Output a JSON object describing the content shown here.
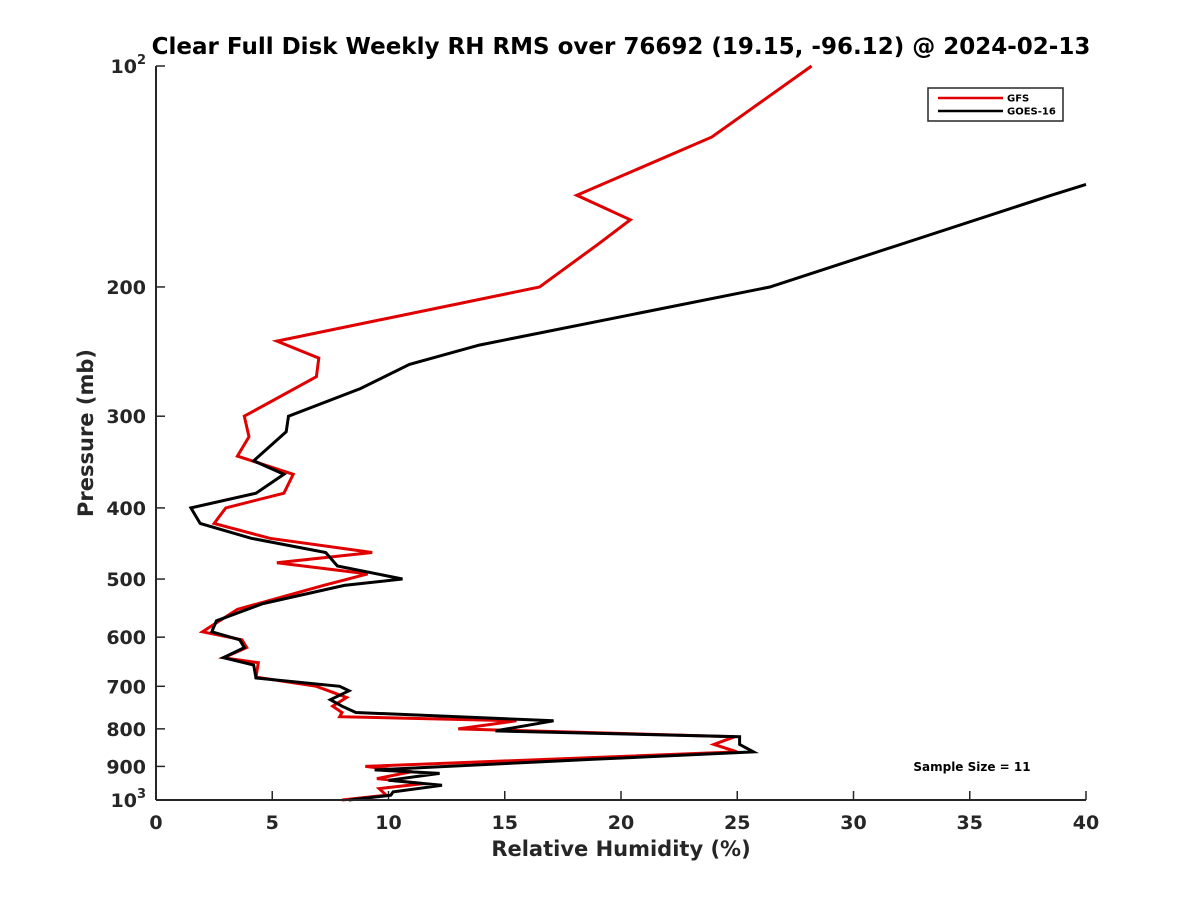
{
  "chart_data": {
    "type": "line",
    "title": "Clear Full Disk Weekly RH RMS over 76692 (19.15, -96.12) @ 2024-02-13",
    "xlabel": "Relative Humidity (%)",
    "ylabel": "Pressure (mb)",
    "xlim": [
      0,
      40
    ],
    "ylim": [
      100,
      1000
    ],
    "yscale": "log",
    "y_reversed": true,
    "x_ticks": [
      "0",
      "5",
      "10",
      "15",
      "20",
      "25",
      "30",
      "35",
      "40"
    ],
    "y_ticks": [
      {
        "value": 100,
        "base": "10",
        "exp": "2"
      },
      {
        "value": 200,
        "label": "200"
      },
      {
        "value": 300,
        "label": "300"
      },
      {
        "value": 400,
        "label": "400"
      },
      {
        "value": 500,
        "label": "500"
      },
      {
        "value": 600,
        "label": "600"
      },
      {
        "value": 700,
        "label": "700"
      },
      {
        "value": 800,
        "label": "800"
      },
      {
        "value": 900,
        "label": "900"
      },
      {
        "value": 1000,
        "base": "10",
        "exp": "3"
      }
    ],
    "legend_position": "top-right",
    "annotation": "Sample Size = 11",
    "series": [
      {
        "name": "GFS",
        "color": "#e00000",
        "points": [
          [
            28.2,
            100
          ],
          [
            23.9,
            125
          ],
          [
            18.1,
            150
          ],
          [
            20.4,
            162
          ],
          [
            19.0,
            175
          ],
          [
            16.5,
            200
          ],
          [
            5.2,
            237
          ],
          [
            7.0,
            250
          ],
          [
            6.9,
            265
          ],
          [
            3.8,
            300
          ],
          [
            4.0,
            320
          ],
          [
            3.5,
            340
          ],
          [
            5.9,
            360
          ],
          [
            5.5,
            382
          ],
          [
            3.0,
            400
          ],
          [
            2.5,
            420
          ],
          [
            4.9,
            440
          ],
          [
            9.3,
            460
          ],
          [
            5.2,
            475
          ],
          [
            9.1,
            492
          ],
          [
            7.2,
            510
          ],
          [
            3.5,
            550
          ],
          [
            2.0,
            590
          ],
          [
            3.7,
            605
          ],
          [
            3.9,
            620
          ],
          [
            2.9,
            640
          ],
          [
            4.4,
            650
          ],
          [
            4.3,
            680
          ],
          [
            6.9,
            700
          ],
          [
            8.2,
            725
          ],
          [
            7.6,
            745
          ],
          [
            8.0,
            760
          ],
          [
            7.9,
            770
          ],
          [
            15.5,
            780
          ],
          [
            13.0,
            800
          ],
          [
            24.9,
            820
          ],
          [
            24.0,
            840
          ],
          [
            25.0,
            860
          ],
          [
            9.0,
            900
          ],
          [
            11.0,
            915
          ],
          [
            9.5,
            935
          ],
          [
            11.5,
            950
          ],
          [
            9.6,
            965
          ],
          [
            9.9,
            985
          ],
          [
            8.0,
            1000
          ]
        ]
      },
      {
        "name": "GOES-16",
        "color": "#000000",
        "points": [
          [
            40.0,
            145
          ],
          [
            38.5,
            150
          ],
          [
            26.4,
            200
          ],
          [
            13.9,
            240
          ],
          [
            10.9,
            255
          ],
          [
            8.8,
            275
          ],
          [
            5.7,
            300
          ],
          [
            5.6,
            315
          ],
          [
            4.2,
            345
          ],
          [
            5.5,
            360
          ],
          [
            4.3,
            382
          ],
          [
            1.5,
            400
          ],
          [
            1.9,
            420
          ],
          [
            4.1,
            440
          ],
          [
            7.3,
            460
          ],
          [
            7.8,
            480
          ],
          [
            10.6,
            500
          ],
          [
            8.1,
            510
          ],
          [
            4.6,
            540
          ],
          [
            2.6,
            570
          ],
          [
            2.4,
            590
          ],
          [
            3.6,
            605
          ],
          [
            3.8,
            620
          ],
          [
            2.9,
            640
          ],
          [
            4.2,
            655
          ],
          [
            4.3,
            682
          ],
          [
            7.9,
            700
          ],
          [
            8.3,
            710
          ],
          [
            7.5,
            730
          ],
          [
            8.0,
            745
          ],
          [
            8.6,
            760
          ],
          [
            17.1,
            780
          ],
          [
            14.6,
            805
          ],
          [
            25.1,
            820
          ],
          [
            25.1,
            840
          ],
          [
            25.7,
            860
          ],
          [
            18.8,
            880
          ],
          [
            9.4,
            910
          ],
          [
            12.2,
            920
          ],
          [
            10.0,
            940
          ],
          [
            12.3,
            955
          ],
          [
            10.2,
            975
          ],
          [
            10.1,
            985
          ],
          [
            8.3,
            1000
          ]
        ]
      }
    ]
  }
}
